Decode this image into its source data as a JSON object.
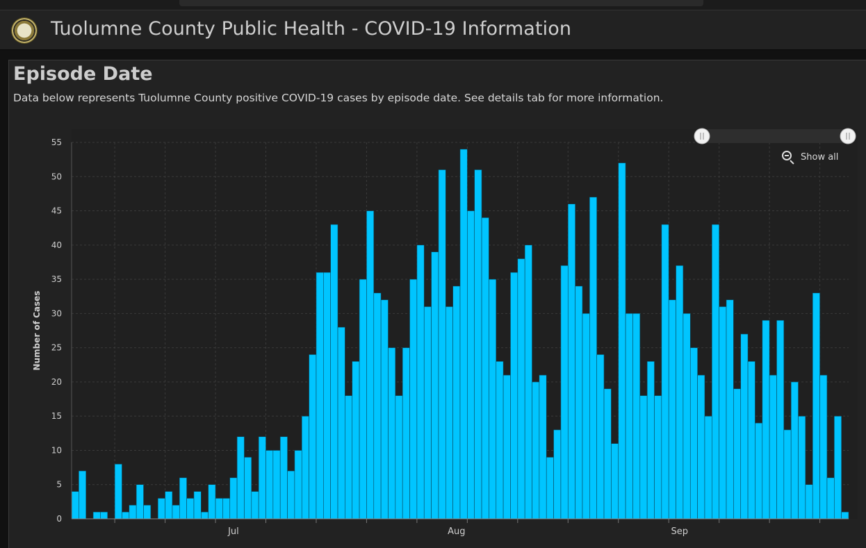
{
  "app": {
    "title": "Tuolumne County Public Health - COVID-19 Information",
    "logo_icon": "county-seal-icon"
  },
  "panel": {
    "title": "Episode Date",
    "description": "Data below represents Tuolumne County positive COVID-19 cases by episode date. See details tab for more information."
  },
  "controls": {
    "show_all_label": "Show all",
    "show_all_icon": "zoom-out-icon",
    "scrollbar_range": [
      0.0,
      1.0
    ]
  },
  "colors": {
    "page_background": "#111111",
    "panel_background": "#222222",
    "plot_background": "#202020",
    "bar": "#00c5ff",
    "bar_stroke": "#0a4a60",
    "grid": "#3a3a3a",
    "text": "#cfcfcf"
  },
  "chart_data": {
    "type": "bar",
    "ylabel": "Number of Cases",
    "xlabel": "",
    "ylim": [
      0,
      55
    ],
    "yticks": [
      0,
      5,
      10,
      15,
      20,
      25,
      30,
      35,
      40,
      45,
      50,
      55
    ],
    "month_labels": [
      {
        "label": "Jul",
        "index": 22
      },
      {
        "label": "Aug",
        "index": 53
      },
      {
        "label": "Sep",
        "index": 84
      }
    ],
    "grid": true,
    "values": [
      4,
      7,
      0,
      1,
      1,
      0,
      8,
      1,
      2,
      5,
      2,
      0,
      3,
      4,
      2,
      6,
      3,
      4,
      1,
      5,
      3,
      3,
      6,
      12,
      9,
      4,
      12,
      10,
      10,
      12,
      7,
      10,
      15,
      24,
      36,
      36,
      43,
      28,
      18,
      23,
      35,
      45,
      33,
      32,
      25,
      18,
      25,
      35,
      40,
      31,
      39,
      51,
      31,
      34,
      54,
      45,
      51,
      44,
      35,
      23,
      21,
      36,
      38,
      40,
      20,
      21,
      9,
      13,
      37,
      46,
      34,
      30,
      47,
      24,
      19,
      11,
      52,
      30,
      30,
      18,
      23,
      18,
      43,
      32,
      37,
      30,
      25,
      21,
      15,
      43,
      31,
      32,
      19,
      27,
      23,
      14,
      29,
      21,
      29,
      13,
      20,
      15,
      5,
      33,
      21,
      6,
      15,
      1
    ]
  }
}
